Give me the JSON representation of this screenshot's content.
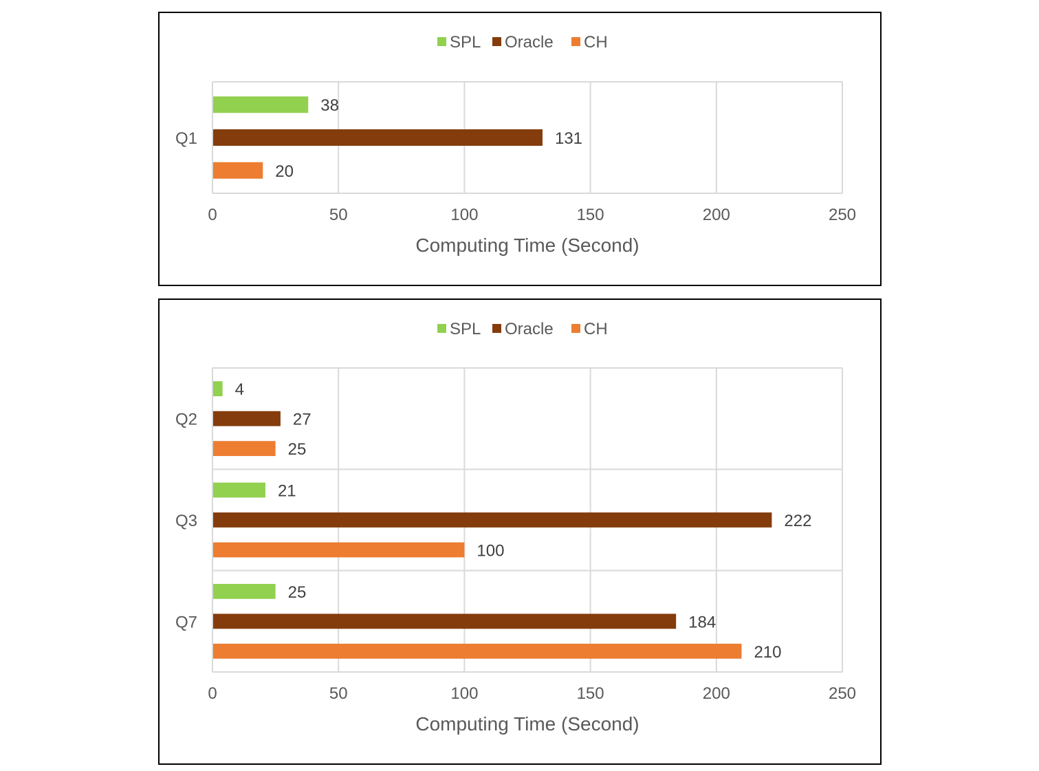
{
  "chart_data": [
    {
      "type": "bar",
      "orientation": "horizontal",
      "title": "",
      "xlabel": "Computing Time (Second)",
      "ylabel": "",
      "xlim": [
        0,
        250
      ],
      "xticks": [
        0,
        50,
        100,
        150,
        200,
        250
      ],
      "grid": true,
      "legend_position": "top",
      "categories": [
        "Q1"
      ],
      "series": [
        {
          "name": "SPL",
          "color": "#92D050",
          "values": [
            38
          ]
        },
        {
          "name": "Oracle",
          "color": "#843C0C",
          "values": [
            131
          ]
        },
        {
          "name": "CH",
          "color": "#ED7D31",
          "values": [
            20
          ]
        }
      ]
    },
    {
      "type": "bar",
      "orientation": "horizontal",
      "title": "",
      "xlabel": "Computing Time (Second)",
      "ylabel": "",
      "xlim": [
        0,
        250
      ],
      "xticks": [
        0,
        50,
        100,
        150,
        200,
        250
      ],
      "grid": true,
      "legend_position": "top",
      "categories": [
        "Q2",
        "Q3",
        "Q7"
      ],
      "series": [
        {
          "name": "SPL",
          "color": "#92D050",
          "values": [
            4,
            21,
            25
          ]
        },
        {
          "name": "Oracle",
          "color": "#843C0C",
          "values": [
            27,
            222,
            184
          ]
        },
        {
          "name": "CH",
          "color": "#ED7D31",
          "values": [
            25,
            100,
            210
          ]
        }
      ]
    }
  ]
}
